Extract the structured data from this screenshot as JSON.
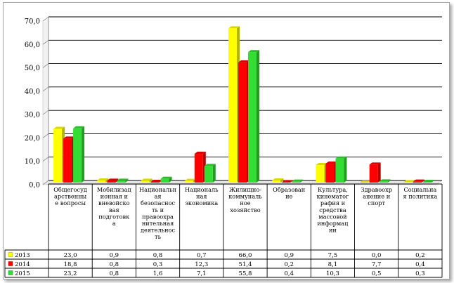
{
  "chart_data": {
    "type": "bar",
    "title": "",
    "xlabel": "",
    "ylabel": "",
    "ylim": [
      0,
      70
    ],
    "yticks": [
      "0,0",
      "10,0",
      "20,0",
      "30,0",
      "40,0",
      "50,0",
      "60,0",
      "70,0"
    ],
    "grid": true,
    "legend": "data-table",
    "style": "3d-clustered-column",
    "categories": [
      [
        "Общегосуд",
        "арственны",
        "е вопросы"
      ],
      [
        "Мобилизац",
        "ионная и",
        "вневойско",
        "вая",
        "подготовк",
        "а"
      ],
      [
        "Национальн",
        "ая",
        "безопаснос",
        "ть и",
        "правоохра",
        "нительная",
        "деятельнос",
        "ть"
      ],
      [
        "Националь",
        "ная",
        "экономика"
      ],
      [
        "Жилищно-",
        "коммуналь",
        "ное",
        "хозяйство"
      ],
      [
        "Образован",
        "ие"
      ],
      [
        "Культура,",
        "кинематог",
        "рафия и",
        "средства",
        "массовой",
        "информац",
        "ии"
      ],
      [
        "Здравоохр",
        "анение и",
        "спорт"
      ],
      [
        "Социальна",
        "я политика"
      ]
    ],
    "series": [
      {
        "name": "2013",
        "color": "#ffff00",
        "values": [
          23.0,
          0.9,
          0.8,
          0.7,
          66.0,
          0.9,
          7.5,
          0.0,
          0.2
        ],
        "labels": [
          "23,0",
          "0,9",
          "0,8",
          "0,7",
          "66,0",
          "0,9",
          "7,5",
          "0,0",
          "0,2"
        ]
      },
      {
        "name": "2014",
        "color": "#ff0000",
        "values": [
          18.8,
          0.8,
          0.3,
          12.3,
          51.4,
          0.2,
          8.1,
          7.7,
          0.4
        ],
        "labels": [
          "18,8",
          "0,8",
          "0,3",
          "12,3",
          "51,4",
          "0,2",
          "8,1",
          "7,7",
          "0,4"
        ]
      },
      {
        "name": "2015",
        "color": "#33dd33",
        "values": [
          23.2,
          0.8,
          1.6,
          7.1,
          55.8,
          0.4,
          10.3,
          0.5,
          0.3
        ],
        "labels": [
          "23,2",
          "0,8",
          "1,6",
          "7,1",
          "55,8",
          "0,4",
          "10,3",
          "0,5",
          "0,3"
        ]
      }
    ]
  }
}
